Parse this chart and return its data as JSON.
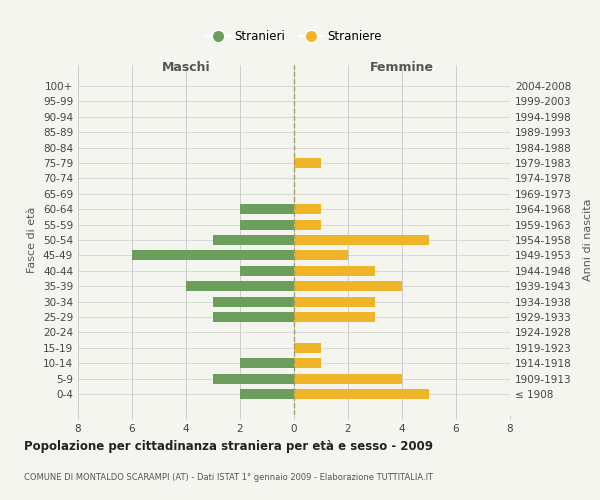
{
  "age_groups": [
    "100+",
    "95-99",
    "90-94",
    "85-89",
    "80-84",
    "75-79",
    "70-74",
    "65-69",
    "60-64",
    "55-59",
    "50-54",
    "45-49",
    "40-44",
    "35-39",
    "30-34",
    "25-29",
    "20-24",
    "15-19",
    "10-14",
    "5-9",
    "0-4"
  ],
  "birth_years": [
    "≤ 1908",
    "1909-1913",
    "1914-1918",
    "1919-1923",
    "1924-1928",
    "1929-1933",
    "1934-1938",
    "1939-1943",
    "1944-1948",
    "1949-1953",
    "1954-1958",
    "1959-1963",
    "1964-1968",
    "1969-1973",
    "1974-1978",
    "1979-1983",
    "1984-1988",
    "1989-1993",
    "1994-1998",
    "1999-2003",
    "2004-2008"
  ],
  "maschi": [
    0,
    0,
    0,
    0,
    0,
    0,
    0,
    0,
    2,
    2,
    3,
    6,
    2,
    4,
    3,
    3,
    0,
    0,
    2,
    3,
    2
  ],
  "femmine": [
    0,
    0,
    0,
    0,
    0,
    1,
    0,
    0,
    1,
    1,
    5,
    2,
    3,
    4,
    3,
    3,
    0,
    1,
    1,
    4,
    5
  ],
  "color_maschi": "#6a9e5a",
  "color_femmine": "#f0b429",
  "bg_color": "#f5f5f0",
  "grid_color": "#cccccc",
  "center_line_color": "#a0a060",
  "title": "Popolazione per cittadinanza straniera per età e sesso - 2009",
  "subtitle": "COMUNE DI MONTALDO SCARAMPI (AT) - Dati ISTAT 1° gennaio 2009 - Elaborazione TUTTITALIA.IT",
  "xlabel_left": "Maschi",
  "xlabel_right": "Femmine",
  "ylabel_left": "Fasce di età",
  "ylabel_right": "Anni di nascita",
  "legend_maschi": "Stranieri",
  "legend_femmine": "Straniere",
  "xlim": 8
}
